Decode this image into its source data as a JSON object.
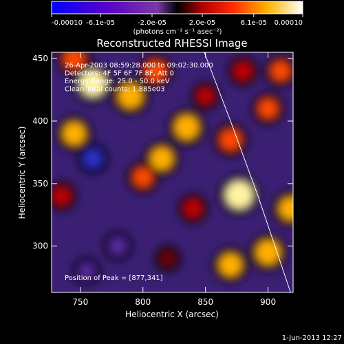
{
  "chart_data": {
    "type": "heatmap",
    "title": "Reconstructed RHESSI Image",
    "xlabel": "Heliocentric X (arcsec)",
    "ylabel": "Heliocentric Y (arcsec)",
    "xlim": [
      727,
      920
    ],
    "ylim": [
      263,
      455
    ],
    "x_ticks": [
      750,
      800,
      850,
      900
    ],
    "y_ticks": [
      300,
      350,
      400,
      450
    ],
    "colorbar": {
      "label_html": "(photons cm⁻² s⁻¹ asec⁻²)",
      "range": [
        -0.0001,
        0.0001
      ],
      "tick_labels": [
        "-0.00010",
        "-6.1e-05",
        "-2.0e-05",
        "2.0e-05",
        "6.1e-05",
        "0.00010"
      ],
      "tick_values": [
        -0.0001,
        -6.1e-05,
        -2e-05,
        2e-05,
        6.1e-05,
        0.0001
      ]
    },
    "annotations": [
      "26-Apr-2003 08:59:28.000 to 09:02:30.000",
      "Detectors: 4F 5F 6F 7F 8F, Att 0",
      "Energy Range: 25.0 - 50.0 keV",
      "Clean     Total counts: 1.885e03"
    ],
    "peak_label": "Position of Peak = [877,341]",
    "peak": [
      877,
      341
    ],
    "limb_curve": [
      [
        849,
        455
      ],
      [
        870,
        400
      ],
      [
        892,
        340
      ],
      [
        918,
        263
      ]
    ],
    "sources": [
      {
        "x": 760,
        "y": 430,
        "v": 9e-05
      },
      {
        "x": 745,
        "y": 390,
        "v": 7e-05
      },
      {
        "x": 735,
        "y": 340,
        "v": 4e-05
      },
      {
        "x": 790,
        "y": 420,
        "v": 8e-05
      },
      {
        "x": 810,
        "y": 440,
        "v": 6e-05
      },
      {
        "x": 835,
        "y": 395,
        "v": 8e-05
      },
      {
        "x": 815,
        "y": 370,
        "v": 7e-05
      },
      {
        "x": 800,
        "y": 355,
        "v": 5e-05
      },
      {
        "x": 870,
        "y": 385,
        "v": 6e-05
      },
      {
        "x": 900,
        "y": 410,
        "v": 5e-05
      },
      {
        "x": 910,
        "y": 440,
        "v": 5e-05
      },
      {
        "x": 877,
        "y": 341,
        "v": 0.0001
      },
      {
        "x": 900,
        "y": 295,
        "v": 8e-05
      },
      {
        "x": 918,
        "y": 330,
        "v": 7e-05
      },
      {
        "x": 870,
        "y": 285,
        "v": 7e-05
      },
      {
        "x": 840,
        "y": 330,
        "v": 4e-05
      },
      {
        "x": 780,
        "y": 300,
        "v": -3e-05
      },
      {
        "x": 755,
        "y": 280,
        "v": -2e-05
      },
      {
        "x": 820,
        "y": 290,
        "v": 2e-05
      },
      {
        "x": 760,
        "y": 370,
        "v": -4e-05
      },
      {
        "x": 850,
        "y": 420,
        "v": 3e-05
      },
      {
        "x": 880,
        "y": 440,
        "v": 4e-05
      },
      {
        "x": 745,
        "y": 450,
        "v": 6e-05
      }
    ]
  },
  "timestamp": "1-Jun-2013 12:27"
}
